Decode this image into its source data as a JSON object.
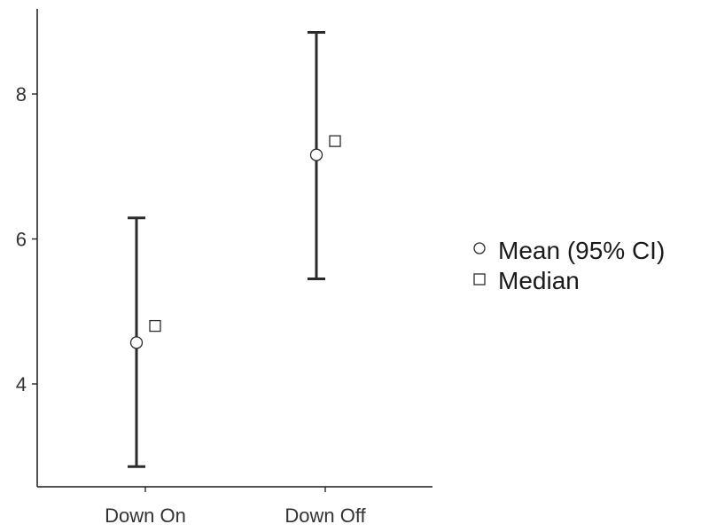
{
  "chart_data": {
    "type": "scatter",
    "categories": [
      "Down On",
      "Down Off"
    ],
    "series": [
      {
        "name": "Mean (95% CI)",
        "marker": "circle",
        "values": [
          4.57,
          7.16
        ],
        "ci_lower": [
          2.86,
          5.45
        ],
        "ci_upper": [
          6.29,
          8.85
        ]
      },
      {
        "name": "Median",
        "marker": "square",
        "values": [
          4.8,
          7.35
        ]
      }
    ],
    "yticks": [
      4,
      6,
      8
    ],
    "ylim": [
      2.6,
      9.2
    ],
    "title": "",
    "xlabel": "",
    "ylabel": "",
    "legend_position": "right",
    "grid": false,
    "colors": {
      "line": "#2b2b2b",
      "axis": "#1a1a1a",
      "marker_fill": "#ffffff"
    }
  }
}
